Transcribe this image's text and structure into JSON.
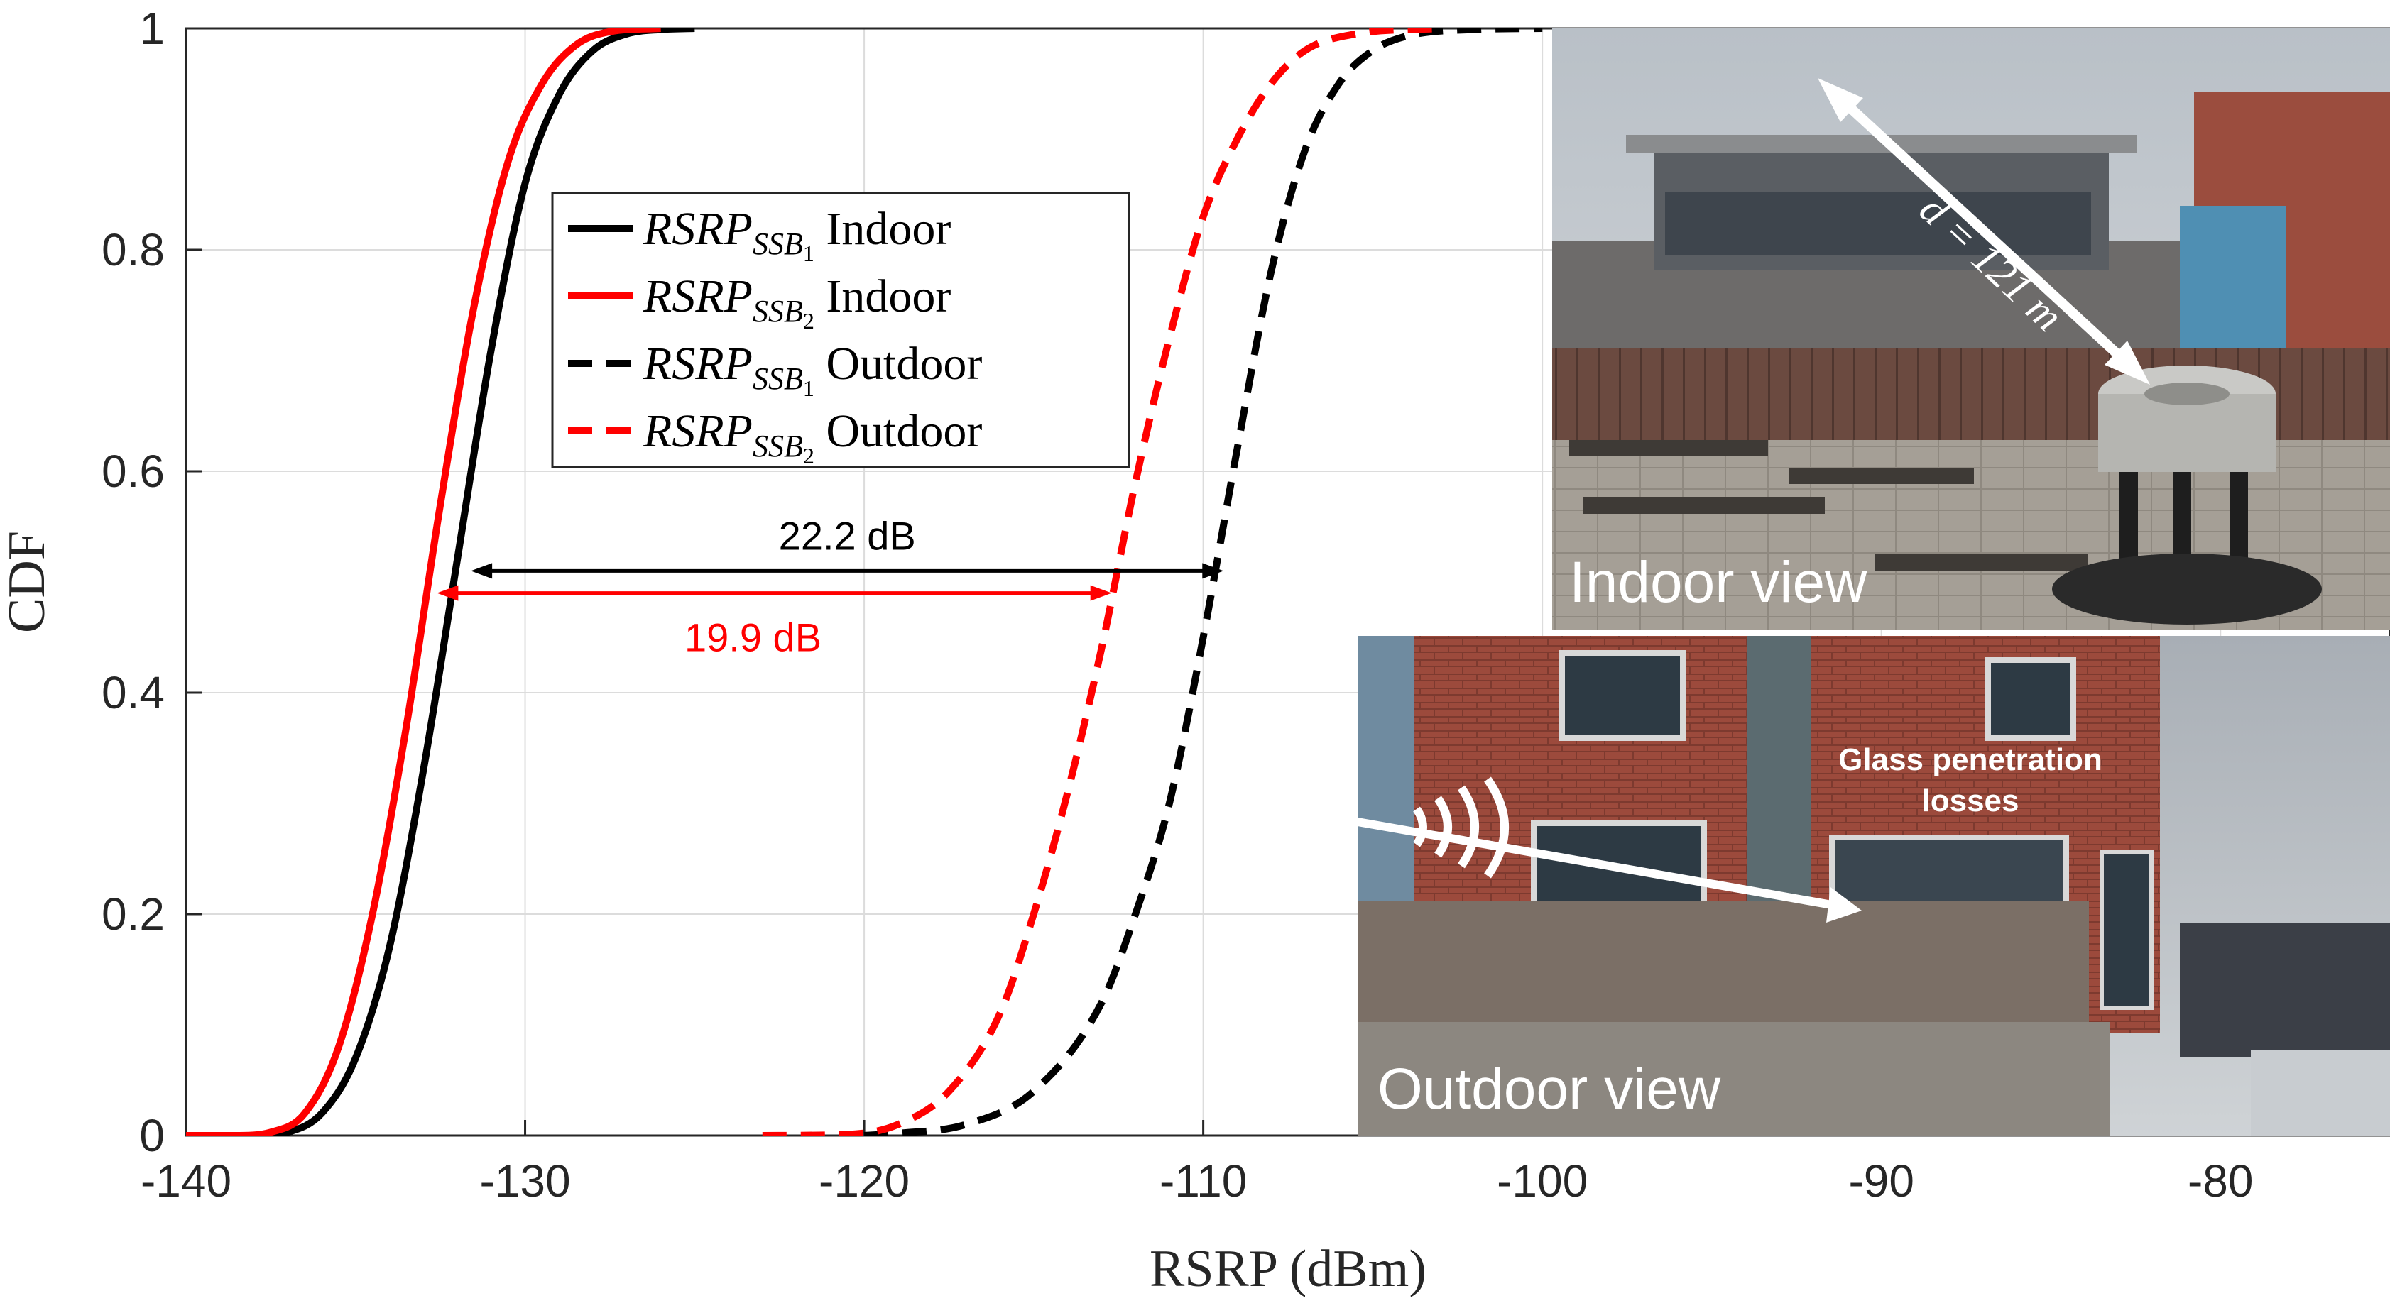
{
  "chart_data": {
    "type": "line",
    "xlabel": "RSRP (dBm)",
    "ylabel": "CDF",
    "xlim": [
      -140,
      -75
    ],
    "ylim": [
      0,
      1
    ],
    "xticks": [
      "-140",
      "-130",
      "-120",
      "-110",
      "-100",
      "-90",
      "-80"
    ],
    "yticks": [
      "0",
      "0.2",
      "0.4",
      "0.6",
      "0.8",
      "1"
    ],
    "grid": true,
    "legend_position": "top-left",
    "series": [
      {
        "name_main": "RSRP",
        "name_sub": "SSB",
        "name_subsub": "1",
        "name_tail": "Indoor",
        "color": "#000000",
        "style": "solid",
        "points": [
          [
            -140,
            0
          ],
          [
            -138,
            0
          ],
          [
            -137,
            0.003
          ],
          [
            -136,
            0.02
          ],
          [
            -135,
            0.07
          ],
          [
            -134,
            0.17
          ],
          [
            -133,
            0.33
          ],
          [
            -132,
            0.52
          ],
          [
            -131,
            0.71
          ],
          [
            -130,
            0.86
          ],
          [
            -129,
            0.94
          ],
          [
            -128,
            0.98
          ],
          [
            -127,
            0.995
          ],
          [
            -126,
            0.999
          ],
          [
            -125,
            1
          ]
        ]
      },
      {
        "name_main": "RSRP",
        "name_sub": "SSB",
        "name_subsub": "2",
        "name_tail": "Indoor",
        "color": "#ff0000",
        "style": "solid",
        "points": [
          [
            -140,
            0
          ],
          [
            -138.5,
            0
          ],
          [
            -137.5,
            0.003
          ],
          [
            -136.5,
            0.02
          ],
          [
            -135.5,
            0.08
          ],
          [
            -134.5,
            0.2
          ],
          [
            -133.5,
            0.37
          ],
          [
            -132.5,
            0.57
          ],
          [
            -131.5,
            0.75
          ],
          [
            -130.5,
            0.88
          ],
          [
            -129.5,
            0.95
          ],
          [
            -128.5,
            0.985
          ],
          [
            -127.5,
            0.997
          ],
          [
            -126,
            1
          ]
        ]
      },
      {
        "name_main": "RSRP",
        "name_sub": "SSB",
        "name_subsub": "1",
        "name_tail": "Outdoor",
        "color": "#000000",
        "style": "dashed",
        "points": [
          [
            -120,
            0
          ],
          [
            -119,
            0.002
          ],
          [
            -117,
            0.01
          ],
          [
            -115,
            0.04
          ],
          [
            -113,
            0.12
          ],
          [
            -112,
            0.2
          ],
          [
            -111,
            0.3
          ],
          [
            -110,
            0.45
          ],
          [
            -109,
            0.62
          ],
          [
            -108,
            0.78
          ],
          [
            -107,
            0.89
          ],
          [
            -106,
            0.95
          ],
          [
            -105,
            0.98
          ],
          [
            -104,
            0.993
          ],
          [
            -102,
            0.999
          ],
          [
            -100,
            1
          ]
        ]
      },
      {
        "name_main": "RSRP",
        "name_sub": "SSB",
        "name_subsub": "2",
        "name_tail": "Outdoor",
        "color": "#ff0000",
        "style": "dashed",
        "points": [
          [
            -123,
            0
          ],
          [
            -120.5,
            0.001
          ],
          [
            -119,
            0.01
          ],
          [
            -117.5,
            0.04
          ],
          [
            -116,
            0.11
          ],
          [
            -115,
            0.2
          ],
          [
            -114,
            0.31
          ],
          [
            -113,
            0.44
          ],
          [
            -112,
            0.59
          ],
          [
            -111,
            0.72
          ],
          [
            -110,
            0.83
          ],
          [
            -109,
            0.9
          ],
          [
            -108,
            0.95
          ],
          [
            -107,
            0.98
          ],
          [
            -105.5,
            0.995
          ],
          [
            -103,
            1
          ]
        ]
      }
    ],
    "annotations": [
      {
        "text": "22.2 dB",
        "color": "#000000",
        "x_from": -131.6,
        "x_to": -109.4,
        "y": 0.51
      },
      {
        "text": "19.9 dB",
        "color": "#ff0000",
        "x_from": -132.6,
        "x_to": -112.7,
        "y": 0.49
      }
    ]
  },
  "photos": {
    "indoor": {
      "label": "Indoor view",
      "distance": "d = 121 m"
    },
    "outdoor": {
      "label": "Outdoor view",
      "note_line1": "Glass penetration",
      "note_line2": "losses"
    }
  }
}
